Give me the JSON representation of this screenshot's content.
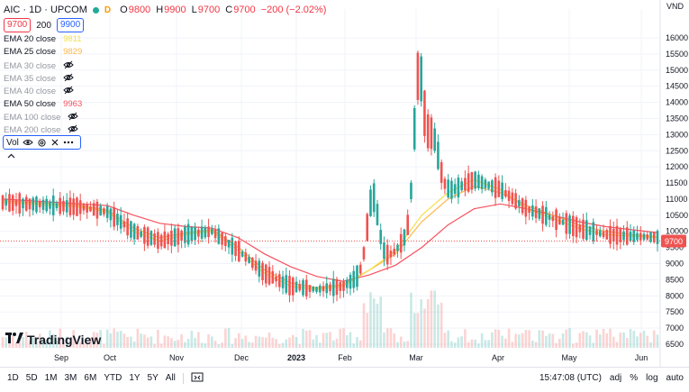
{
  "header": {
    "symbol_line": "AIC · 1D · UPCOM",
    "delay_badge": "D",
    "ohlc": [
      {
        "label": "O",
        "value": "9800"
      },
      {
        "label": "H",
        "value": "9900"
      },
      {
        "label": "L",
        "value": "9700"
      },
      {
        "label": "C",
        "value": "9700"
      }
    ],
    "change": "−200 (−2.02%)",
    "bid": "9700",
    "spread": "200",
    "ask": "9900"
  },
  "indicators": [
    {
      "name": "EMA 20 close",
      "value": "9811",
      "visible": true,
      "color": "#f2e14c"
    },
    {
      "name": "EMA 25 close",
      "value": "9829",
      "visible": true,
      "color": "#ffb74d"
    },
    {
      "name": "EMA 30 close",
      "value": "",
      "visible": false
    },
    {
      "name": "EMA 35 close",
      "value": "",
      "visible": false
    },
    {
      "name": "EMA 40 close",
      "value": "",
      "visible": false
    },
    {
      "name": "EMA 50 close",
      "value": "9963",
      "visible": true,
      "color": "#f7525f"
    },
    {
      "name": "EMA 100 close",
      "value": "",
      "visible": false
    },
    {
      "name": "EMA 200 close",
      "value": "",
      "visible": false
    }
  ],
  "volume_legend": {
    "label": "Vol"
  },
  "logo_text": "TradingView",
  "bottom": {
    "ranges": [
      "1D",
      "5D",
      "1M",
      "3M",
      "6M",
      "YTD",
      "1Y",
      "5Y",
      "All"
    ],
    "time": "15:47:08 (UTC)",
    "percent": "%",
    "log": "log",
    "auto": "auto",
    "adj": "adj"
  },
  "colors": {
    "up": "#26a69a",
    "down": "#ef5350",
    "accent": "#2962ff"
  },
  "chart_data": {
    "type": "candlestick",
    "currency": "VND",
    "last_price_label": "9700",
    "ylim": [
      6000,
      16500
    ],
    "y_ticks": [
      "6500",
      "7000",
      "7500",
      "8000",
      "8500",
      "9000",
      "9500",
      "10000",
      "10500",
      "11000",
      "11500",
      "12000",
      "12500",
      "13000",
      "13500",
      "14000",
      "14500",
      "15000",
      "15500",
      "16000"
    ],
    "x_labels": [
      "Sep",
      "Oct",
      "Nov",
      "Dec",
      "2023",
      "Feb",
      "Mar",
      "Apr",
      "May",
      "Jun"
    ],
    "ema20_approx": [
      10900,
      10850,
      10800,
      10750,
      10600,
      10000,
      9700,
      9900,
      10000,
      9400,
      8700,
      8300,
      8200,
      8300,
      8800,
      9400,
      10500,
      11200,
      11600,
      11300,
      10700,
      10400,
      10100,
      9900,
      9850,
      9811
    ],
    "ema25_approx": [
      10950,
      10900,
      10850,
      10800,
      10650,
      10100,
      9800,
      9950,
      10050,
      9500,
      8800,
      8400,
      8250,
      8350,
      8800,
      9300,
      10300,
      11000,
      11400,
      11200,
      10800,
      10500,
      10200,
      10000,
      9900,
      9829
    ],
    "ema50_approx": [
      11000,
      10950,
      10900,
      10850,
      10800,
      10500,
      10250,
      10150,
      10100,
      9800,
      9300,
      8900,
      8600,
      8450,
      8650,
      8950,
      9500,
      10200,
      10700,
      10850,
      10700,
      10500,
      10300,
      10150,
      10050,
      9963
    ]
  }
}
